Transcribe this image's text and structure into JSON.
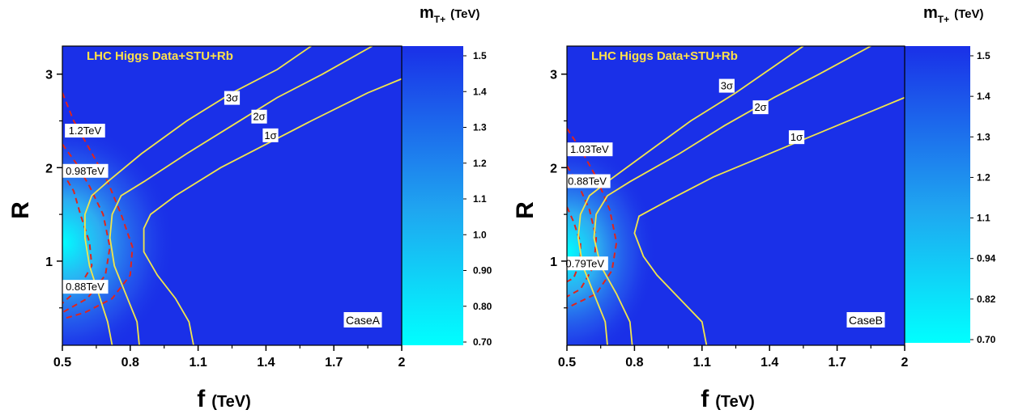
{
  "colors": {
    "background": "#1a30e8",
    "bright": "#00ffff",
    "sigma_contour": "#f2e54a",
    "mass_contour": "#e0241c",
    "title": "#ffe14a"
  },
  "chart_data": [
    {
      "type": "heatmap",
      "title": "LHC Higgs Data+STU+Rb",
      "case_label": "CaseA",
      "xlabel_main": "f",
      "xlabel_unit": "(TeV)",
      "ylabel": "R",
      "xlim": [
        0.5,
        2.0
      ],
      "ylim": [
        0.1,
        3.3
      ],
      "x_ticks": [
        0.5,
        0.8,
        1.1,
        1.4,
        1.7,
        2.0
      ],
      "x_tick_labels": [
        "0.5",
        "0.8",
        "1.1",
        "1.4",
        "1.7",
        "2"
      ],
      "y_ticks": [
        1,
        2,
        3
      ],
      "y_tick_labels": [
        "1",
        "2",
        "3"
      ],
      "colorbar": {
        "title_main": "m",
        "title_sub": "T+",
        "title_unit": "(TeV)",
        "labels": [
          "1.5",
          "1.4",
          "1.3",
          "1.2",
          "1.1",
          "1.0",
          "0.90",
          "0.80",
          "0.70"
        ],
        "range": [
          0.7,
          1.55
        ]
      },
      "bright_region": {
        "f": 0.5,
        "R": 1.2,
        "df": 0.5,
        "dR": 1.3
      },
      "sigma_contours": [
        {
          "label": "3σ",
          "label_at": {
            "f": 1.25,
            "R": 2.75
          },
          "points": [
            [
              0.72,
              0.1
            ],
            [
              0.7,
              0.35
            ],
            [
              0.66,
              0.65
            ],
            [
              0.62,
              0.95
            ],
            [
              0.6,
              1.25
            ],
            [
              0.6,
              1.5
            ],
            [
              0.63,
              1.7
            ],
            [
              0.7,
              1.85
            ],
            [
              0.85,
              2.15
            ],
            [
              1.05,
              2.5
            ],
            [
              1.25,
              2.8
            ],
            [
              1.45,
              3.05
            ],
            [
              1.6,
              3.3
            ]
          ]
        },
        {
          "label": "2σ",
          "label_at": {
            "f": 1.37,
            "R": 2.55
          },
          "points": [
            [
              0.84,
              0.1
            ],
            [
              0.83,
              0.35
            ],
            [
              0.78,
              0.65
            ],
            [
              0.73,
              0.95
            ],
            [
              0.71,
              1.25
            ],
            [
              0.72,
              1.5
            ],
            [
              0.76,
              1.7
            ],
            [
              0.86,
              1.85
            ],
            [
              1.05,
              2.15
            ],
            [
              1.25,
              2.45
            ],
            [
              1.45,
              2.75
            ],
            [
              1.65,
              3.0
            ],
            [
              1.87,
              3.3
            ]
          ]
        },
        {
          "label": "1σ",
          "label_at": {
            "f": 1.42,
            "R": 2.35
          },
          "points": [
            [
              1.08,
              0.1
            ],
            [
              1.06,
              0.35
            ],
            [
              1.0,
              0.6
            ],
            [
              0.92,
              0.85
            ],
            [
              0.86,
              1.1
            ],
            [
              0.86,
              1.35
            ],
            [
              0.89,
              1.5
            ],
            [
              1.0,
              1.7
            ],
            [
              1.2,
              2.0
            ],
            [
              1.4,
              2.25
            ],
            [
              1.6,
              2.5
            ],
            [
              1.85,
              2.8
            ],
            [
              2.0,
              2.95
            ]
          ]
        }
      ],
      "mass_contours": [
        {
          "label": "1.2TeV",
          "label_at": {
            "f": 0.6,
            "R": 2.4
          },
          "points": [
            [
              0.5,
              2.8
            ],
            [
              0.55,
              2.5
            ],
            [
              0.62,
              2.2
            ],
            [
              0.7,
              1.85
            ],
            [
              0.76,
              1.5
            ],
            [
              0.81,
              1.15
            ],
            [
              0.8,
              0.85
            ],
            [
              0.72,
              0.6
            ],
            [
              0.6,
              0.45
            ],
            [
              0.5,
              0.38
            ]
          ]
        },
        {
          "label": "0.98TeV",
          "label_at": {
            "f": 0.6,
            "R": 1.97
          },
          "points": [
            [
              0.5,
              2.25
            ],
            [
              0.56,
              2.05
            ],
            [
              0.62,
              1.8
            ],
            [
              0.68,
              1.5
            ],
            [
              0.71,
              1.15
            ],
            [
              0.69,
              0.85
            ],
            [
              0.61,
              0.6
            ],
            [
              0.5,
              0.45
            ]
          ]
        },
        {
          "label": "0.88TeV",
          "label_at": {
            "f": 0.6,
            "R": 0.73
          },
          "points": [
            [
              0.5,
              1.95
            ],
            [
              0.55,
              1.75
            ],
            [
              0.58,
              1.5
            ],
            [
              0.62,
              1.2
            ],
            [
              0.63,
              0.95
            ],
            [
              0.57,
              0.7
            ],
            [
              0.5,
              0.55
            ]
          ]
        }
      ]
    },
    {
      "type": "heatmap",
      "title": "LHC Higgs Data+STU+Rb",
      "case_label": "CaseB",
      "xlabel_main": "f",
      "xlabel_unit": "(TeV)",
      "ylabel": "R",
      "xlim": [
        0.5,
        2.0
      ],
      "ylim": [
        0.1,
        3.3
      ],
      "x_ticks": [
        0.5,
        0.8,
        1.1,
        1.4,
        1.7,
        2.0
      ],
      "x_tick_labels": [
        "0.5",
        "0.8",
        "1.1",
        "1.4",
        "1.7",
        "2"
      ],
      "y_ticks": [
        1,
        2,
        3
      ],
      "y_tick_labels": [
        "1",
        "2",
        "3"
      ],
      "colorbar": {
        "title_main": "m",
        "title_sub": "T+",
        "title_unit": "(TeV)",
        "labels": [
          "1.5",
          "1.4",
          "1.3",
          "1.2",
          "1.1",
          "0.94",
          "0.82",
          "0.70"
        ],
        "range": [
          0.7,
          1.55
        ]
      },
      "bright_region": {
        "f": 0.5,
        "R": 1.1,
        "df": 0.4,
        "dR": 1.2
      },
      "sigma_contours": [
        {
          "label": "3σ",
          "label_at": {
            "f": 1.21,
            "R": 2.88
          },
          "points": [
            [
              0.68,
              0.1
            ],
            [
              0.67,
              0.35
            ],
            [
              0.62,
              0.65
            ],
            [
              0.57,
              0.95
            ],
            [
              0.55,
              1.25
            ],
            [
              0.56,
              1.5
            ],
            [
              0.6,
              1.7
            ],
            [
              0.68,
              1.85
            ],
            [
              0.85,
              2.15
            ],
            [
              1.05,
              2.5
            ],
            [
              1.25,
              2.8
            ],
            [
              1.4,
              3.05
            ],
            [
              1.55,
              3.3
            ]
          ]
        },
        {
          "label": "2σ",
          "label_at": {
            "f": 1.36,
            "R": 2.65
          },
          "points": [
            [
              0.79,
              0.1
            ],
            [
              0.78,
              0.35
            ],
            [
              0.72,
              0.65
            ],
            [
              0.65,
              0.95
            ],
            [
              0.62,
              1.25
            ],
            [
              0.63,
              1.5
            ],
            [
              0.68,
              1.7
            ],
            [
              0.78,
              1.85
            ],
            [
              1.0,
              2.15
            ],
            [
              1.2,
              2.45
            ],
            [
              1.42,
              2.75
            ],
            [
              1.62,
              3.0
            ],
            [
              1.85,
              3.3
            ]
          ]
        },
        {
          "label": "1σ",
          "label_at": {
            "f": 1.52,
            "R": 2.33
          },
          "points": [
            [
              1.12,
              0.1
            ],
            [
              1.1,
              0.35
            ],
            [
              1.0,
              0.6
            ],
            [
              0.9,
              0.85
            ],
            [
              0.84,
              1.05
            ],
            [
              0.8,
              1.3
            ],
            [
              0.82,
              1.48
            ],
            [
              0.95,
              1.65
            ],
            [
              1.15,
              1.9
            ],
            [
              1.35,
              2.1
            ],
            [
              1.55,
              2.3
            ],
            [
              1.8,
              2.55
            ],
            [
              2.0,
              2.75
            ]
          ]
        }
      ],
      "mass_contours": [
        {
          "label": "1.03TeV",
          "label_at": {
            "f": 0.6,
            "R": 2.2
          },
          "points": [
            [
              0.5,
              2.42
            ],
            [
              0.56,
              2.2
            ],
            [
              0.63,
              1.9
            ],
            [
              0.69,
              1.55
            ],
            [
              0.72,
              1.2
            ],
            [
              0.7,
              0.9
            ],
            [
              0.63,
              0.65
            ],
            [
              0.5,
              0.5
            ]
          ]
        },
        {
          "label": "0.88TeV",
          "label_at": {
            "f": 0.59,
            "R": 1.86
          },
          "points": [
            [
              0.5,
              2.02
            ],
            [
              0.55,
              1.82
            ],
            [
              0.6,
              1.55
            ],
            [
              0.63,
              1.25
            ],
            [
              0.62,
              0.95
            ],
            [
              0.56,
              0.7
            ],
            [
              0.5,
              0.62
            ]
          ]
        },
        {
          "label": "0.79TeV",
          "label_at": {
            "f": 0.58,
            "R": 0.98
          },
          "points": [
            [
              0.5,
              1.58
            ],
            [
              0.53,
              1.42
            ],
            [
              0.56,
              1.2
            ],
            [
              0.56,
              1.0
            ],
            [
              0.53,
              0.82
            ],
            [
              0.5,
              0.78
            ]
          ]
        }
      ]
    }
  ]
}
